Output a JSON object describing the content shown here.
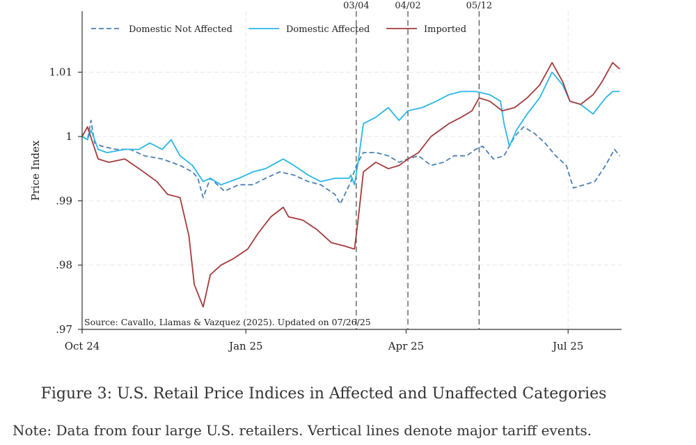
{
  "caption": "Figure 3: U.S. Retail Price Indices in Affected and Unaffected Categories",
  "note": "Note: Data from four large U.S. retailers. Vertical lines denote major tariff events.",
  "chart_data": {
    "type": "line",
    "title": "",
    "xlabel": "",
    "ylabel": "Price Index",
    "ylim": [
      0.97,
      1.0195
    ],
    "xlim": [
      "2024-10-01",
      "2025-07-31"
    ],
    "yticks": [
      0.97,
      0.98,
      0.99,
      1.0,
      1.01
    ],
    "yticklabels": [
      ".97",
      ".98",
      ".99",
      "1",
      "1.01"
    ],
    "xticks": [
      "2024-10-01",
      "2025-01-01",
      "2025-04-01",
      "2025-07-01"
    ],
    "xticklabels": [
      "Oct 24",
      "Jan 25",
      "Apr 25",
      "Jul 25"
    ],
    "grid": true,
    "legend_position": "top",
    "source_note": "Source: Cavallo, Llamas & Vazquez (2025). Updated on 07/26/25",
    "events": [
      {
        "label": "03/04",
        "x": "2025-03-04"
      },
      {
        "label": "04/02",
        "x": "2025-04-02"
      },
      {
        "label": "05/12",
        "x": "2025-05-12"
      }
    ],
    "series": [
      {
        "name": "Domestic Not Affected",
        "color": "#4a7fb5",
        "dash": "dashed",
        "points": [
          [
            "2024-10-01",
            1.0
          ],
          [
            "2024-10-04",
            0.9995
          ],
          [
            "2024-10-06",
            1.0025
          ],
          [
            "2024-10-08",
            0.999
          ],
          [
            "2024-10-12",
            0.9985
          ],
          [
            "2024-10-20",
            0.998
          ],
          [
            "2024-10-28",
            0.998
          ],
          [
            "2024-11-05",
            0.997
          ],
          [
            "2024-11-15",
            0.9965
          ],
          [
            "2024-11-25",
            0.9955
          ],
          [
            "2024-12-02",
            0.9945
          ],
          [
            "2024-12-05",
            0.9935
          ],
          [
            "2024-12-08",
            0.9905
          ],
          [
            "2024-12-12",
            0.9935
          ],
          [
            "2024-12-20",
            0.9915
          ],
          [
            "2024-12-28",
            0.9925
          ],
          [
            "2025-01-05",
            0.9925
          ],
          [
            "2025-01-12",
            0.9935
          ],
          [
            "2025-01-20",
            0.9945
          ],
          [
            "2025-01-28",
            0.994
          ],
          [
            "2025-02-05",
            0.993
          ],
          [
            "2025-02-12",
            0.9925
          ],
          [
            "2025-02-20",
            0.991
          ],
          [
            "2025-02-23",
            0.9895
          ],
          [
            "2025-03-01",
            0.993
          ],
          [
            "2025-03-04",
            0.9955
          ],
          [
            "2025-03-08",
            0.9975
          ],
          [
            "2025-03-15",
            0.9975
          ],
          [
            "2025-03-22",
            0.997
          ],
          [
            "2025-03-28",
            0.996
          ],
          [
            "2025-04-02",
            0.9965
          ],
          [
            "2025-04-08",
            0.997
          ],
          [
            "2025-04-15",
            0.9955
          ],
          [
            "2025-04-22",
            0.996
          ],
          [
            "2025-04-28",
            0.997
          ],
          [
            "2025-05-05",
            0.997
          ],
          [
            "2025-05-10",
            0.998
          ],
          [
            "2025-05-14",
            0.9985
          ],
          [
            "2025-05-20",
            0.9965
          ],
          [
            "2025-05-26",
            0.997
          ],
          [
            "2025-06-01",
            1.0
          ],
          [
            "2025-06-06",
            1.0015
          ],
          [
            "2025-06-12",
            1.0005
          ],
          [
            "2025-06-18",
            0.999
          ],
          [
            "2025-06-24",
            0.997
          ],
          [
            "2025-06-30",
            0.9955
          ],
          [
            "2025-07-04",
            0.992
          ],
          [
            "2025-07-10",
            0.9925
          ],
          [
            "2025-07-16",
            0.993
          ],
          [
            "2025-07-22",
            0.9955
          ],
          [
            "2025-07-27",
            0.998
          ],
          [
            "2025-07-30",
            0.997
          ]
        ]
      },
      {
        "name": "Domestic Affected",
        "color": "#29b6e8",
        "dash": "solid",
        "points": [
          [
            "2024-10-01",
            1.0
          ],
          [
            "2024-10-04",
            0.9995
          ],
          [
            "2024-10-06",
            1.001
          ],
          [
            "2024-10-10",
            0.998
          ],
          [
            "2024-10-15",
            0.9975
          ],
          [
            "2024-10-25",
            0.998
          ],
          [
            "2024-11-02",
            0.998
          ],
          [
            "2024-11-08",
            0.999
          ],
          [
            "2024-11-15",
            0.998
          ],
          [
            "2024-11-20",
            0.9995
          ],
          [
            "2024-11-25",
            0.997
          ],
          [
            "2024-12-02",
            0.9955
          ],
          [
            "2024-12-08",
            0.993
          ],
          [
            "2024-12-12",
            0.9935
          ],
          [
            "2024-12-18",
            0.9925
          ],
          [
            "2024-12-28",
            0.9935
          ],
          [
            "2025-01-05",
            0.9945
          ],
          [
            "2025-01-12",
            0.995
          ],
          [
            "2025-01-22",
            0.9965
          ],
          [
            "2025-01-28",
            0.9955
          ],
          [
            "2025-02-05",
            0.994
          ],
          [
            "2025-02-12",
            0.993
          ],
          [
            "2025-02-20",
            0.9935
          ],
          [
            "2025-02-28",
            0.9935
          ],
          [
            "2025-03-01",
            0.994
          ],
          [
            "2025-03-03",
            0.9925
          ],
          [
            "2025-03-05",
            0.996
          ],
          [
            "2025-03-08",
            1.002
          ],
          [
            "2025-03-15",
            1.003
          ],
          [
            "2025-03-22",
            1.0045
          ],
          [
            "2025-03-28",
            1.0025
          ],
          [
            "2025-04-02",
            1.004
          ],
          [
            "2025-04-10",
            1.0045
          ],
          [
            "2025-04-18",
            1.0055
          ],
          [
            "2025-04-25",
            1.0065
          ],
          [
            "2025-05-02",
            1.007
          ],
          [
            "2025-05-10",
            1.007
          ],
          [
            "2025-05-18",
            1.0065
          ],
          [
            "2025-05-24",
            1.0055
          ],
          [
            "2025-05-26",
            1.002
          ],
          [
            "2025-05-29",
            0.9985
          ],
          [
            "2025-06-02",
            1.001
          ],
          [
            "2025-06-08",
            1.0035
          ],
          [
            "2025-06-15",
            1.006
          ],
          [
            "2025-06-22",
            1.01
          ],
          [
            "2025-06-28",
            1.008
          ],
          [
            "2025-07-02",
            1.0055
          ],
          [
            "2025-07-08",
            1.005
          ],
          [
            "2025-07-15",
            1.0035
          ],
          [
            "2025-07-22",
            1.006
          ],
          [
            "2025-07-26",
            1.007
          ],
          [
            "2025-07-30",
            1.007
          ]
        ]
      },
      {
        "name": "Imported",
        "color": "#a33a3a",
        "dash": "solid",
        "points": [
          [
            "2024-10-01",
            1.0
          ],
          [
            "2024-10-04",
            1.0015
          ],
          [
            "2024-10-07",
            0.999
          ],
          [
            "2024-10-10",
            0.9965
          ],
          [
            "2024-10-16",
            0.996
          ],
          [
            "2024-10-25",
            0.9965
          ],
          [
            "2024-11-02",
            0.995
          ],
          [
            "2024-11-12",
            0.993
          ],
          [
            "2024-11-18",
            0.991
          ],
          [
            "2024-11-25",
            0.9905
          ],
          [
            "2024-11-30",
            0.9845
          ],
          [
            "2024-12-03",
            0.977
          ],
          [
            "2024-12-08",
            0.9735
          ],
          [
            "2024-12-12",
            0.9785
          ],
          [
            "2024-12-18",
            0.98
          ],
          [
            "2024-12-25",
            0.981
          ],
          [
            "2025-01-02",
            0.9825
          ],
          [
            "2025-01-08",
            0.985
          ],
          [
            "2025-01-15",
            0.9875
          ],
          [
            "2025-01-22",
            0.989
          ],
          [
            "2025-01-25",
            0.9875
          ],
          [
            "2025-02-02",
            0.987
          ],
          [
            "2025-02-10",
            0.9855
          ],
          [
            "2025-02-18",
            0.9835
          ],
          [
            "2025-02-25",
            0.983
          ],
          [
            "2025-03-03",
            0.9825
          ],
          [
            "2025-03-05",
            0.987
          ],
          [
            "2025-03-08",
            0.9945
          ],
          [
            "2025-03-15",
            0.996
          ],
          [
            "2025-03-22",
            0.995
          ],
          [
            "2025-03-28",
            0.9955
          ],
          [
            "2025-04-02",
            0.9965
          ],
          [
            "2025-04-08",
            0.9975
          ],
          [
            "2025-04-15",
            1.0
          ],
          [
            "2025-04-25",
            1.002
          ],
          [
            "2025-05-02",
            1.003
          ],
          [
            "2025-05-08",
            1.004
          ],
          [
            "2025-05-12",
            1.006
          ],
          [
            "2025-05-18",
            1.0055
          ],
          [
            "2025-05-25",
            1.004
          ],
          [
            "2025-06-01",
            1.0045
          ],
          [
            "2025-06-08",
            1.006
          ],
          [
            "2025-06-15",
            1.008
          ],
          [
            "2025-06-22",
            1.0115
          ],
          [
            "2025-06-28",
            1.0085
          ],
          [
            "2025-07-02",
            1.0055
          ],
          [
            "2025-07-08",
            1.005
          ],
          [
            "2025-07-15",
            1.0065
          ],
          [
            "2025-07-20",
            1.0085
          ],
          [
            "2025-07-26",
            1.0115
          ],
          [
            "2025-07-30",
            1.0105
          ]
        ]
      }
    ]
  }
}
